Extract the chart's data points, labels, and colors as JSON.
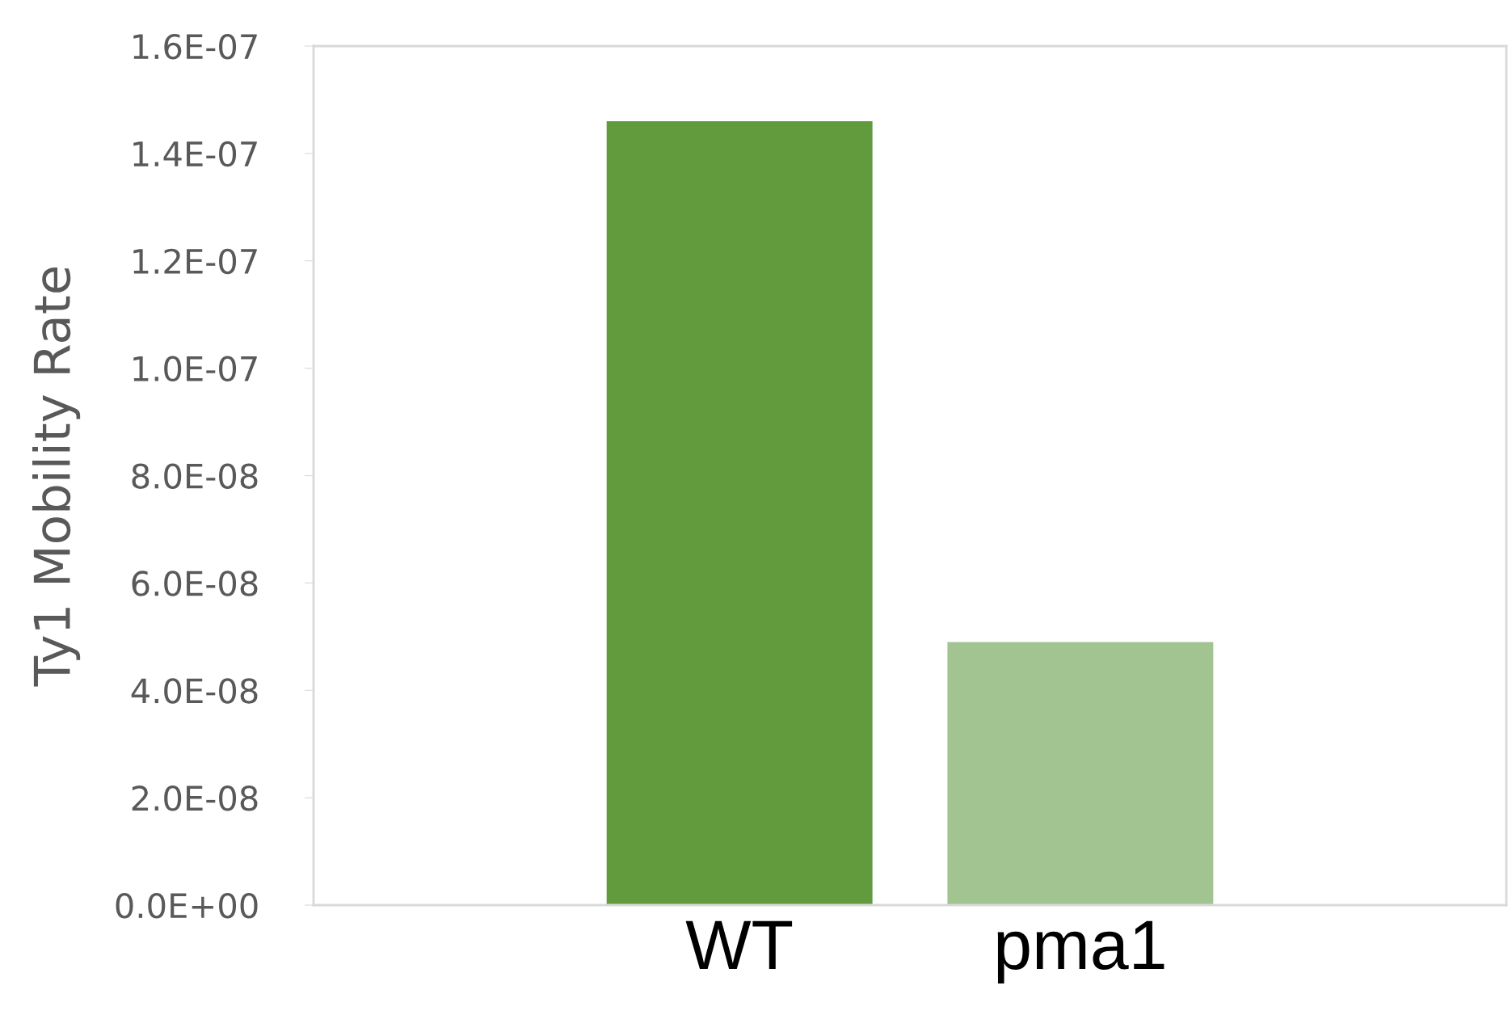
{
  "chart_data": {
    "type": "bar",
    "ylabel": "Ty1 Mobility Rate",
    "categories": [
      "WT",
      "pma1"
    ],
    "values": [
      1.46e-07,
      4.9e-08
    ],
    "colors": [
      "#629a3e",
      "#a1c490"
    ],
    "ylim": [
      0,
      1.6e-07
    ],
    "yticks": [
      {
        "value": 0,
        "label": "0.0E+00"
      },
      {
        "value": 2e-08,
        "label": "2.0E-08"
      },
      {
        "value": 4e-08,
        "label": "4.0E-08"
      },
      {
        "value": 6e-08,
        "label": "6.0E-08"
      },
      {
        "value": 8e-08,
        "label": "8.0E-08"
      },
      {
        "value": 1e-07,
        "label": "1.0E-07"
      },
      {
        "value": 1.2e-07,
        "label": "1.2E-07"
      },
      {
        "value": 1.4e-07,
        "label": "1.4E-07"
      },
      {
        "value": 1.6e-07,
        "label": "1.6E-07"
      }
    ],
    "grid": false
  }
}
